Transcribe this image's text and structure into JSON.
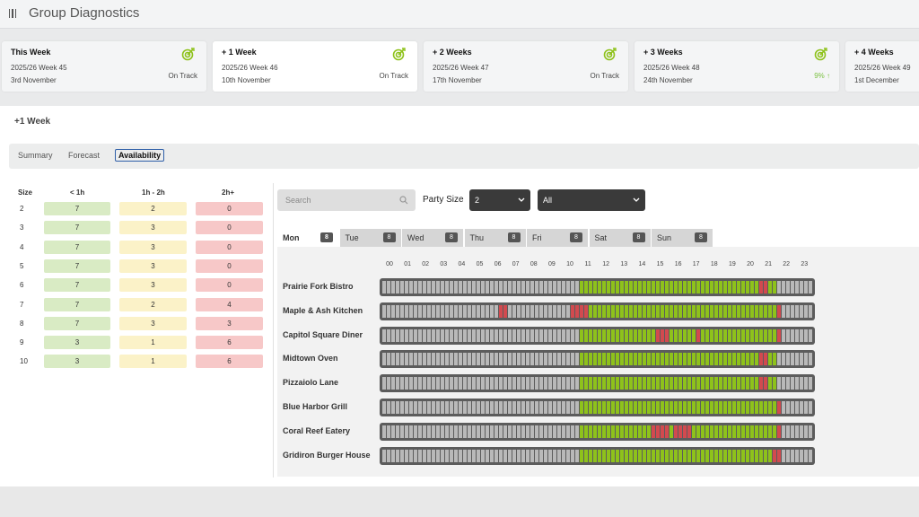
{
  "app": {
    "title": "Group Diagnostics"
  },
  "colors": {
    "green": "#8ec21b",
    "grey": "#b9b9b9",
    "red": "#d24a4f",
    "dark": "#5c5c5c",
    "track_up": "#7cc243"
  },
  "weeks": [
    {
      "title": "This Week",
      "label": "2025/26 Week 45",
      "date": "3rd November",
      "status": "On Track",
      "selected": false
    },
    {
      "title": "+ 1 Week",
      "label": "2025/26 Week 46",
      "date": "10th November",
      "status": "On Track",
      "selected": true
    },
    {
      "title": "+ 2 Weeks",
      "label": "2025/26 Week 47",
      "date": "17th November",
      "status": "On Track",
      "selected": false
    },
    {
      "title": "+ 3 Weeks",
      "label": "2025/26 Week 48",
      "date": "24th November",
      "status": "9% ↑",
      "selected": false
    },
    {
      "title": "+ 4 Weeks",
      "label": "2025/26 Week 49",
      "date": "1st December",
      "status": "",
      "selected": false
    }
  ],
  "section_title": "+1 Week",
  "tabs": [
    "Summary",
    "Forecast",
    "Availability"
  ],
  "active_tab": "Availability",
  "availability": {
    "headers": [
      "Size",
      "< 1h",
      "1h - 2h",
      "2h+"
    ],
    "rows": [
      {
        "size": "2",
        "lt1": "7",
        "h12": "2",
        "h2p": "0"
      },
      {
        "size": "3",
        "lt1": "7",
        "h12": "3",
        "h2p": "0"
      },
      {
        "size": "4",
        "lt1": "7",
        "h12": "3",
        "h2p": "0"
      },
      {
        "size": "5",
        "lt1": "7",
        "h12": "3",
        "h2p": "0"
      },
      {
        "size": "6",
        "lt1": "7",
        "h12": "3",
        "h2p": "0"
      },
      {
        "size": "7",
        "lt1": "7",
        "h12": "2",
        "h2p": "4"
      },
      {
        "size": "8",
        "lt1": "7",
        "h12": "3",
        "h2p": "3"
      },
      {
        "size": "9",
        "lt1": "3",
        "h12": "1",
        "h2p": "6"
      },
      {
        "size": "10",
        "lt1": "3",
        "h12": "1",
        "h2p": "6"
      }
    ]
  },
  "filters": {
    "search_placeholder": "Search",
    "party_size_label": "Party Size",
    "party_size_value": "2",
    "scope_value": "All"
  },
  "days": [
    {
      "label": "Mon",
      "badge": "8",
      "active": true
    },
    {
      "label": "Tue",
      "badge": "8",
      "active": false
    },
    {
      "label": "Wed",
      "badge": "8",
      "active": false
    },
    {
      "label": "Thu",
      "badge": "8",
      "active": false
    },
    {
      "label": "Fri",
      "badge": "8",
      "active": false
    },
    {
      "label": "Sat",
      "badge": "8",
      "active": false
    },
    {
      "label": "Sun",
      "badge": "8",
      "active": false
    }
  ],
  "hours": [
    "00",
    "01",
    "02",
    "03",
    "04",
    "05",
    "06",
    "07",
    "08",
    "09",
    "10",
    "11",
    "12",
    "13",
    "14",
    "15",
    "16",
    "17",
    "18",
    "19",
    "20",
    "21",
    "22",
    "23"
  ],
  "restaurants": [
    {
      "name": "Prairie Fork Bistro",
      "red_slots": [
        84,
        85
      ]
    },
    {
      "name": "Maple & Ash Kitchen",
      "red_slots": [
        26,
        27,
        42,
        43,
        44,
        45,
        88
      ]
    },
    {
      "name": "Capitol Square Diner",
      "red_slots": [
        61,
        62,
        63,
        70,
        88
      ]
    },
    {
      "name": "Midtown Oven",
      "red_slots": [
        84,
        85
      ]
    },
    {
      "name": "Pizzaiolo Lane",
      "red_slots": [
        84,
        85
      ]
    },
    {
      "name": "Blue Harbor Grill",
      "red_slots": [
        88
      ]
    },
    {
      "name": "Coral Reef Eatery",
      "red_slots": [
        60,
        61,
        62,
        63,
        65,
        66,
        67,
        68,
        88
      ]
    },
    {
      "name": "Gridiron Burger House",
      "red_slots": [
        87,
        88
      ]
    }
  ]
}
